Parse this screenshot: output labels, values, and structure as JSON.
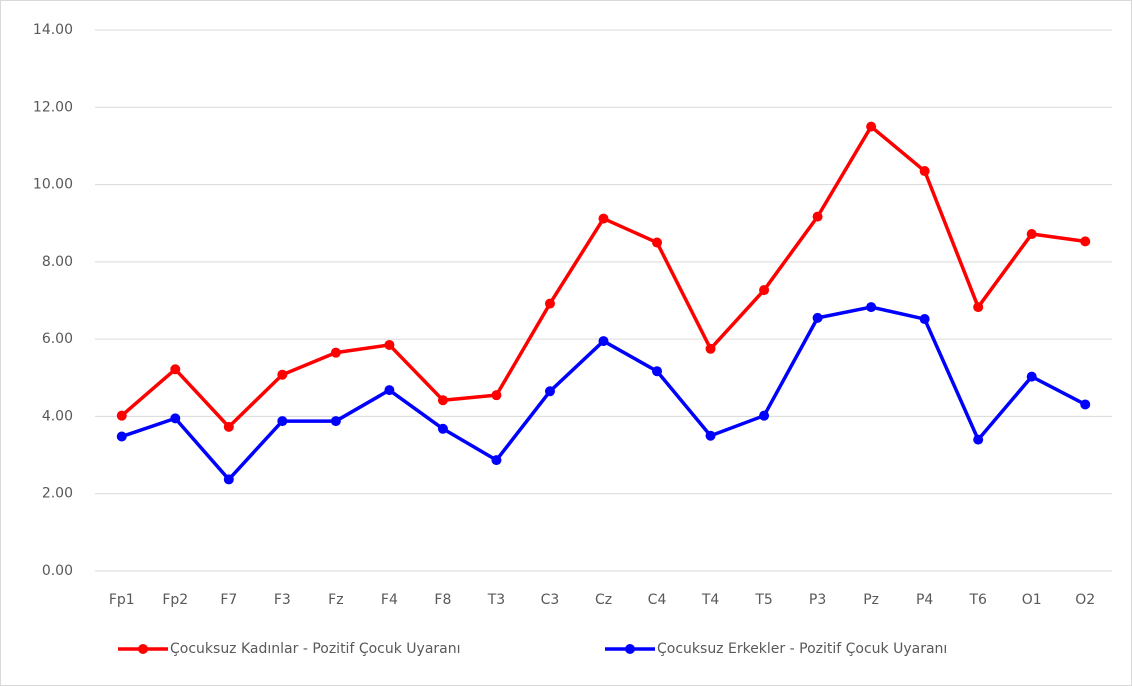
{
  "chart_data": {
    "type": "line",
    "categories": [
      "Fp1",
      "Fp2",
      "F7",
      "F3",
      "Fz",
      "F4",
      "F8",
      "T3",
      "C3",
      "Cz",
      "C4",
      "T4",
      "T5",
      "P3",
      "Pz",
      "P4",
      "T6",
      "O1",
      "O2"
    ],
    "series": [
      {
        "name": "Çocuksuz Kadınlar - Pozitif  Çocuk Uyaranı",
        "color": "#ff0000",
        "values": [
          4.02,
          5.22,
          3.73,
          5.08,
          5.65,
          5.85,
          4.42,
          4.55,
          6.92,
          9.12,
          8.5,
          5.75,
          7.27,
          9.17,
          11.5,
          10.35,
          6.83,
          8.72,
          8.53
        ]
      },
      {
        "name": "Çocuksuz Erkekler - Pozitif Çocuk Uyaranı",
        "color": "#0000ff",
        "values": [
          3.48,
          3.95,
          2.37,
          3.88,
          3.88,
          4.68,
          3.68,
          2.87,
          4.65,
          5.95,
          5.17,
          3.5,
          4.02,
          6.55,
          6.83,
          6.52,
          3.4,
          5.03,
          4.31
        ]
      }
    ],
    "ylim": [
      0,
      14
    ],
    "yticks": [
      {
        "value": 0,
        "label": "0.00"
      },
      {
        "value": 2,
        "label": "2.00"
      },
      {
        "value": 4,
        "label": "4.00"
      },
      {
        "value": 6,
        "label": "6.00"
      },
      {
        "value": 8,
        "label": "8.00"
      },
      {
        "value": 10,
        "label": "10.00"
      },
      {
        "value": 12,
        "label": "12.00"
      },
      {
        "value": 14,
        "label": "14.00"
      }
    ],
    "grid": true,
    "legend": "bottom"
  }
}
